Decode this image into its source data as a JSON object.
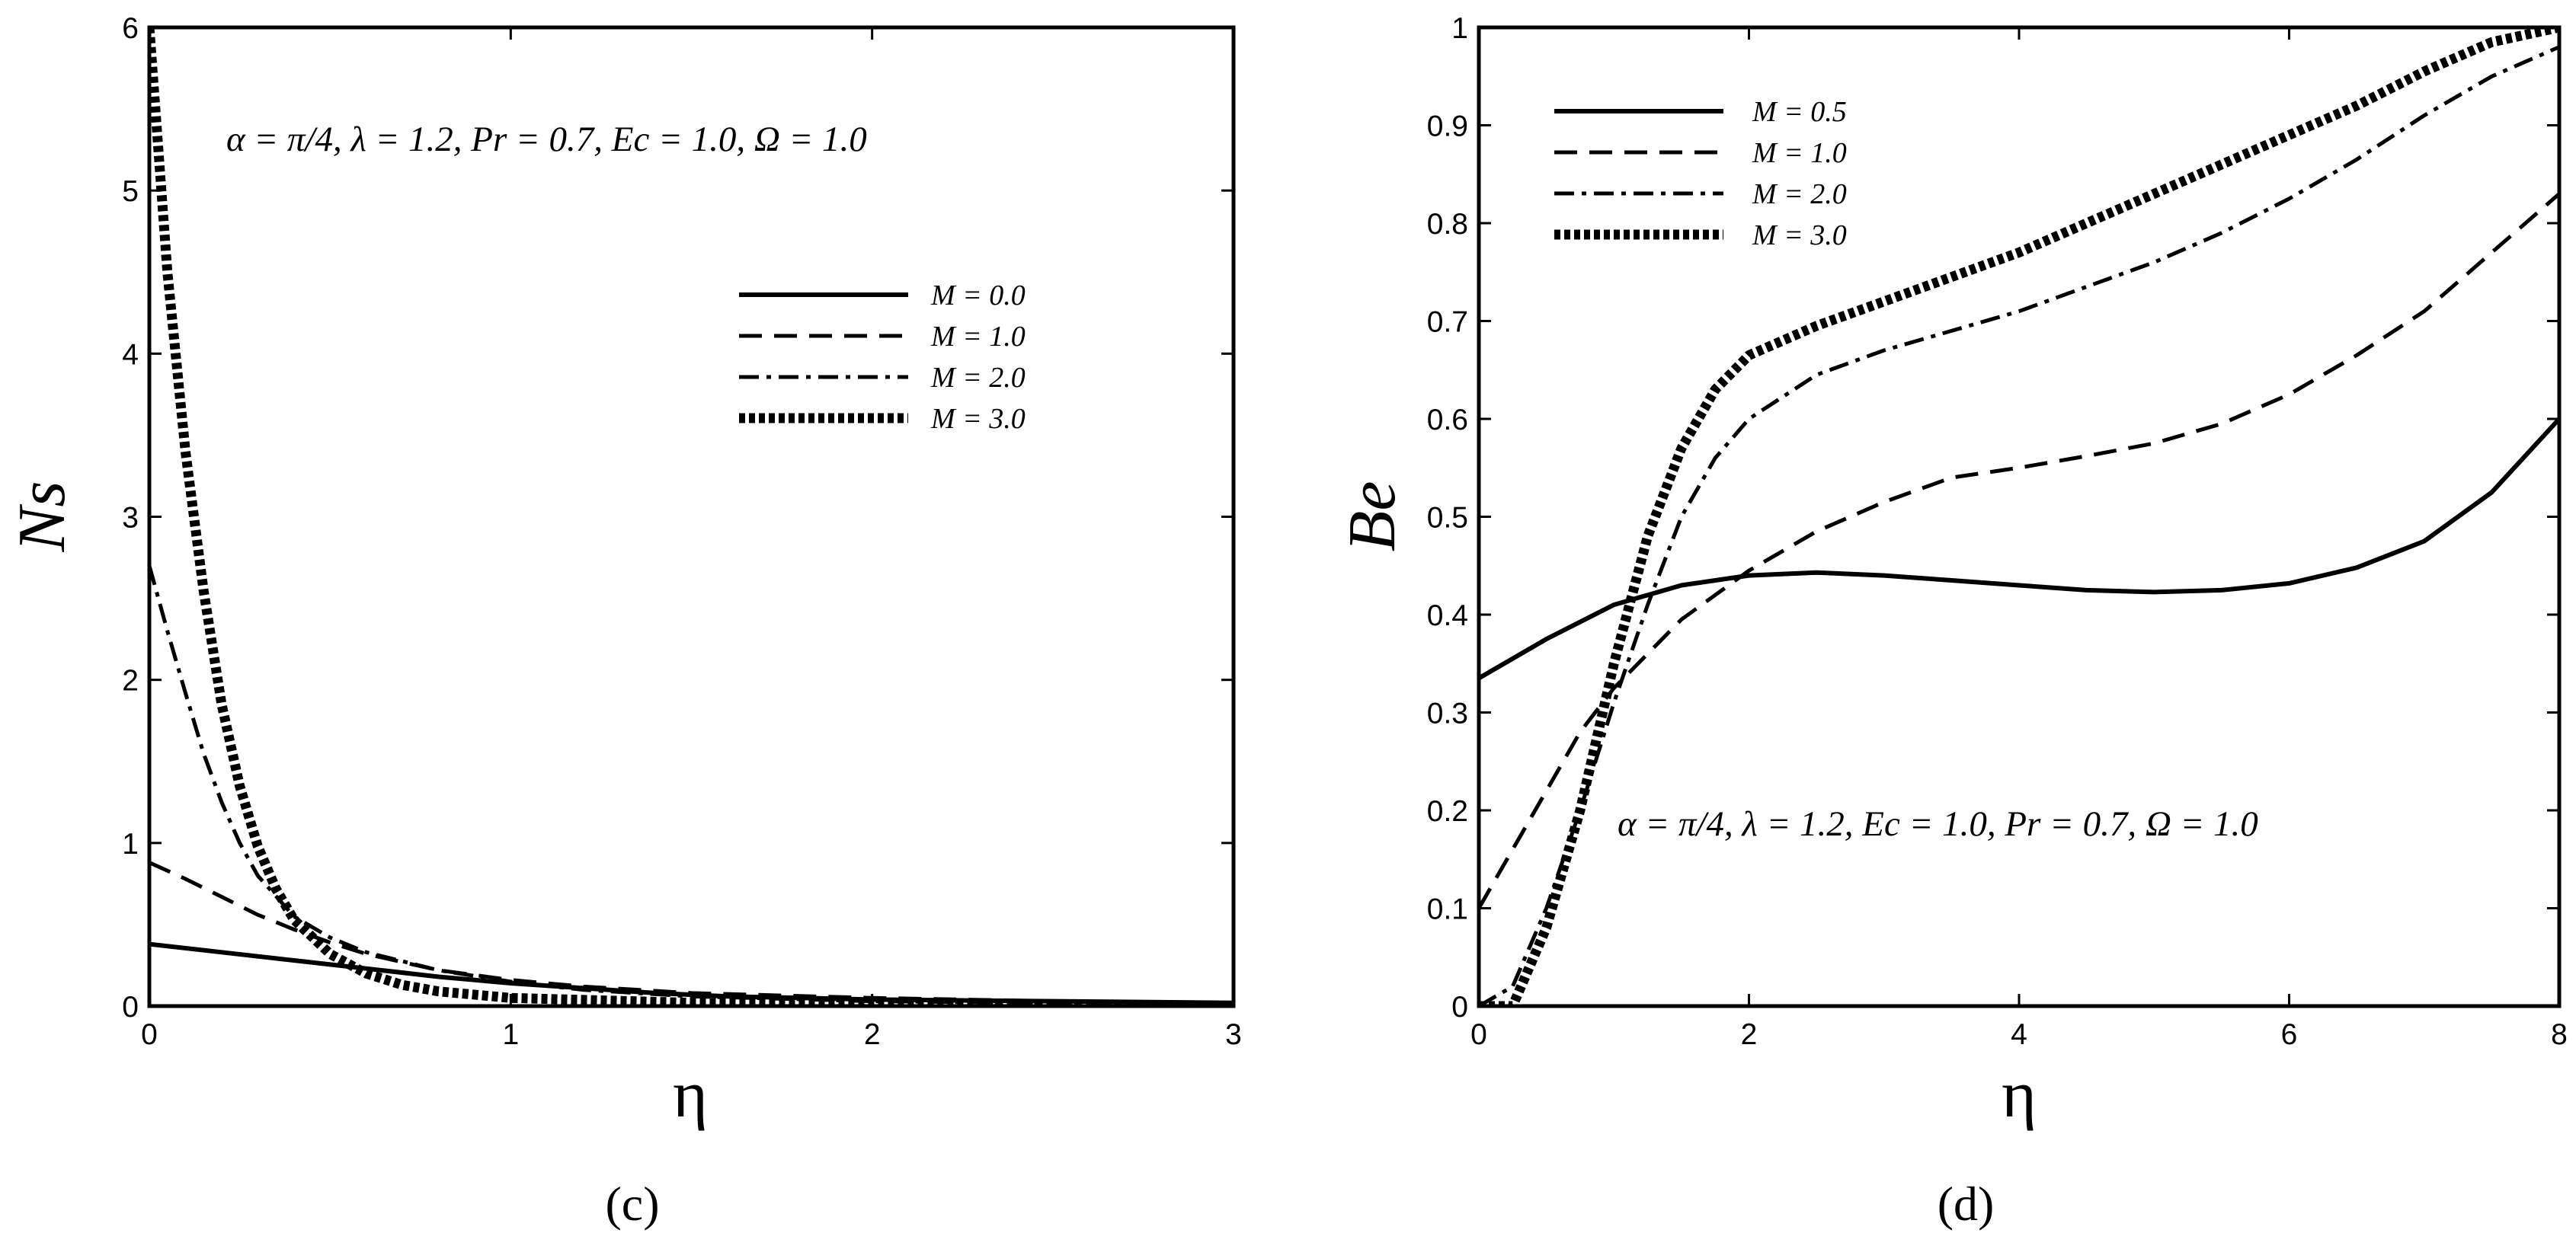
{
  "chart_data": [
    {
      "type": "line",
      "panel_caption": "(c)",
      "xlabel": "η",
      "ylabel": "Ns",
      "xlim": [
        0,
        3
      ],
      "ylim": [
        0,
        6
      ],
      "x_ticks": [
        "0",
        "1",
        "2",
        "3"
      ],
      "y_ticks": [
        "0",
        "1",
        "2",
        "3",
        "4",
        "5",
        "6"
      ],
      "annotation": "α = π/4, λ = 1.2, Pr = 0.7, Ec = 1.0, Ω = 1.0",
      "legend_position": "upper-right",
      "series": [
        {
          "name": "M = 0.0",
          "style": "solid",
          "points": [
            [
              0,
              0.38
            ],
            [
              0.2,
              0.33
            ],
            [
              0.4,
              0.28
            ],
            [
              0.6,
              0.23
            ],
            [
              0.8,
              0.18
            ],
            [
              1.0,
              0.14
            ],
            [
              1.2,
              0.11
            ],
            [
              1.4,
              0.08
            ],
            [
              1.6,
              0.06
            ],
            [
              1.8,
              0.05
            ],
            [
              2.0,
              0.04
            ],
            [
              2.5,
              0.03
            ],
            [
              3.0,
              0.02
            ]
          ]
        },
        {
          "name": "M = 1.0",
          "style": "dash",
          "points": [
            [
              0,
              0.88
            ],
            [
              0.1,
              0.78
            ],
            [
              0.2,
              0.67
            ],
            [
              0.3,
              0.56
            ],
            [
              0.4,
              0.47
            ],
            [
              0.5,
              0.39
            ],
            [
              0.6,
              0.32
            ],
            [
              0.8,
              0.22
            ],
            [
              1.0,
              0.16
            ],
            [
              1.2,
              0.12
            ],
            [
              1.5,
              0.08
            ],
            [
              2.0,
              0.05
            ],
            [
              2.5,
              0.03
            ],
            [
              3.0,
              0.02
            ]
          ]
        },
        {
          "name": "M = 2.0",
          "style": "dashdot",
          "points": [
            [
              0,
              2.7
            ],
            [
              0.05,
              2.3
            ],
            [
              0.1,
              1.92
            ],
            [
              0.15,
              1.55
            ],
            [
              0.2,
              1.25
            ],
            [
              0.25,
              1.0
            ],
            [
              0.3,
              0.8
            ],
            [
              0.4,
              0.55
            ],
            [
              0.5,
              0.42
            ],
            [
              0.6,
              0.33
            ],
            [
              0.8,
              0.22
            ],
            [
              1.0,
              0.15
            ],
            [
              1.2,
              0.1
            ],
            [
              1.5,
              0.06
            ],
            [
              2.0,
              0.03
            ],
            [
              3.0,
              0.01
            ]
          ]
        },
        {
          "name": "M = 3.0",
          "style": "dotted",
          "points": [
            [
              0,
              6.0
            ],
            [
              0.02,
              5.4
            ],
            [
              0.05,
              4.5
            ],
            [
              0.1,
              3.4
            ],
            [
              0.15,
              2.55
            ],
            [
              0.2,
              1.85
            ],
            [
              0.25,
              1.35
            ],
            [
              0.3,
              0.98
            ],
            [
              0.35,
              0.72
            ],
            [
              0.4,
              0.53
            ],
            [
              0.5,
              0.32
            ],
            [
              0.6,
              0.2
            ],
            [
              0.7,
              0.13
            ],
            [
              0.8,
              0.09
            ],
            [
              1.0,
              0.05
            ],
            [
              1.5,
              0.02
            ],
            [
              2.0,
              0.01
            ],
            [
              3.0,
              0.0
            ]
          ]
        }
      ]
    },
    {
      "type": "line",
      "panel_caption": "(d)",
      "xlabel": "η",
      "ylabel": "Be",
      "xlim": [
        0,
        8
      ],
      "ylim": [
        0,
        1
      ],
      "x_ticks": [
        "0",
        "2",
        "4",
        "6",
        "8"
      ],
      "y_ticks": [
        "0",
        "0.1",
        "0.2",
        "0.3",
        "0.4",
        "0.5",
        "0.6",
        "0.7",
        "0.8",
        "0.9",
        "1"
      ],
      "annotation": "α = π/4, λ = 1.2, Ec = 1.0, Pr = 0.7, Ω = 1.0",
      "legend_position": "upper-left",
      "series": [
        {
          "name": "M = 0.5",
          "style": "solid",
          "points": [
            [
              0,
              0.335
            ],
            [
              0.5,
              0.375
            ],
            [
              1,
              0.41
            ],
            [
              1.5,
              0.43
            ],
            [
              2,
              0.44
            ],
            [
              2.5,
              0.443
            ],
            [
              3,
              0.44
            ],
            [
              3.5,
              0.435
            ],
            [
              4,
              0.43
            ],
            [
              4.5,
              0.425
            ],
            [
              5,
              0.423
            ],
            [
              5.5,
              0.425
            ],
            [
              6,
              0.432
            ],
            [
              6.5,
              0.448
            ],
            [
              7,
              0.475
            ],
            [
              7.5,
              0.525
            ],
            [
              8,
              0.6
            ]
          ]
        },
        {
          "name": "M = 1.0",
          "style": "dash",
          "points": [
            [
              0,
              0.1
            ],
            [
              0.25,
              0.16
            ],
            [
              0.5,
              0.22
            ],
            [
              0.75,
              0.28
            ],
            [
              1,
              0.325
            ],
            [
              1.25,
              0.36
            ],
            [
              1.5,
              0.395
            ],
            [
              2,
              0.445
            ],
            [
              2.5,
              0.485
            ],
            [
              3,
              0.515
            ],
            [
              3.5,
              0.54
            ],
            [
              4,
              0.55
            ],
            [
              4.5,
              0.562
            ],
            [
              5,
              0.575
            ],
            [
              5.5,
              0.595
            ],
            [
              6,
              0.625
            ],
            [
              6.5,
              0.665
            ],
            [
              7,
              0.71
            ],
            [
              7.5,
              0.77
            ],
            [
              8,
              0.83
            ]
          ]
        },
        {
          "name": "M = 2.0",
          "style": "dashdot",
          "points": [
            [
              0,
              0.0
            ],
            [
              0.25,
              0.02
            ],
            [
              0.5,
              0.1
            ],
            [
              0.75,
              0.2
            ],
            [
              1,
              0.31
            ],
            [
              1.25,
              0.41
            ],
            [
              1.5,
              0.5
            ],
            [
              1.75,
              0.56
            ],
            [
              2,
              0.6
            ],
            [
              2.5,
              0.645
            ],
            [
              3,
              0.67
            ],
            [
              3.5,
              0.69
            ],
            [
              4,
              0.71
            ],
            [
              4.5,
              0.735
            ],
            [
              5,
              0.76
            ],
            [
              5.5,
              0.79
            ],
            [
              6,
              0.825
            ],
            [
              6.5,
              0.865
            ],
            [
              7,
              0.91
            ],
            [
              7.5,
              0.95
            ],
            [
              8,
              0.98
            ]
          ]
        },
        {
          "name": "M = 3.0",
          "style": "dotted",
          "points": [
            [
              0,
              0.0
            ],
            [
              0.25,
              0.0
            ],
            [
              0.5,
              0.08
            ],
            [
              0.75,
              0.2
            ],
            [
              1,
              0.35
            ],
            [
              1.25,
              0.48
            ],
            [
              1.5,
              0.57
            ],
            [
              1.75,
              0.63
            ],
            [
              2,
              0.665
            ],
            [
              2.5,
              0.695
            ],
            [
              3,
              0.72
            ],
            [
              3.5,
              0.745
            ],
            [
              4,
              0.77
            ],
            [
              4.5,
              0.8
            ],
            [
              5,
              0.83
            ],
            [
              5.5,
              0.86
            ],
            [
              6,
              0.89
            ],
            [
              6.5,
              0.92
            ],
            [
              7,
              0.955
            ],
            [
              7.5,
              0.985
            ],
            [
              8,
              1.0
            ]
          ]
        }
      ]
    }
  ]
}
